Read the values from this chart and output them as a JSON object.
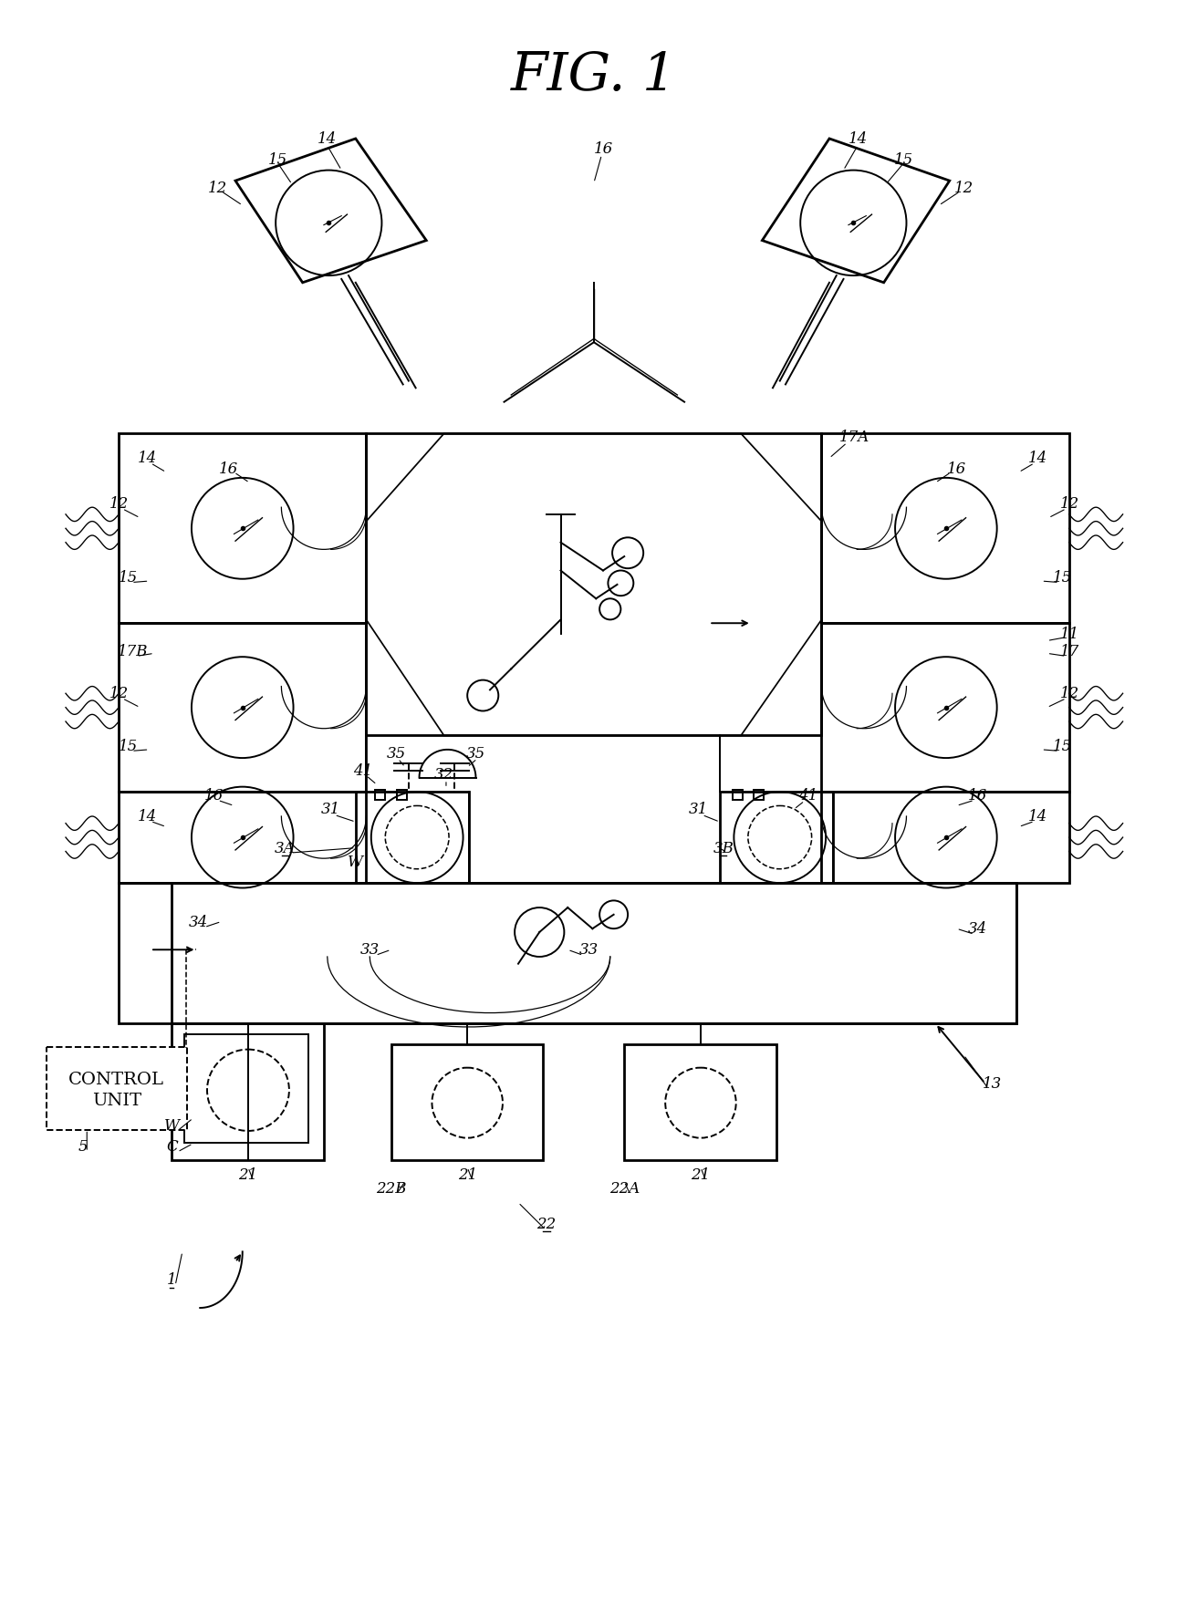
{
  "title": "FIG. 1",
  "bg": "#ffffff",
  "fw": 16.54,
  "fh": 22.63,
  "lw": 1.4,
  "lwt": 2.0,
  "fs": 12
}
